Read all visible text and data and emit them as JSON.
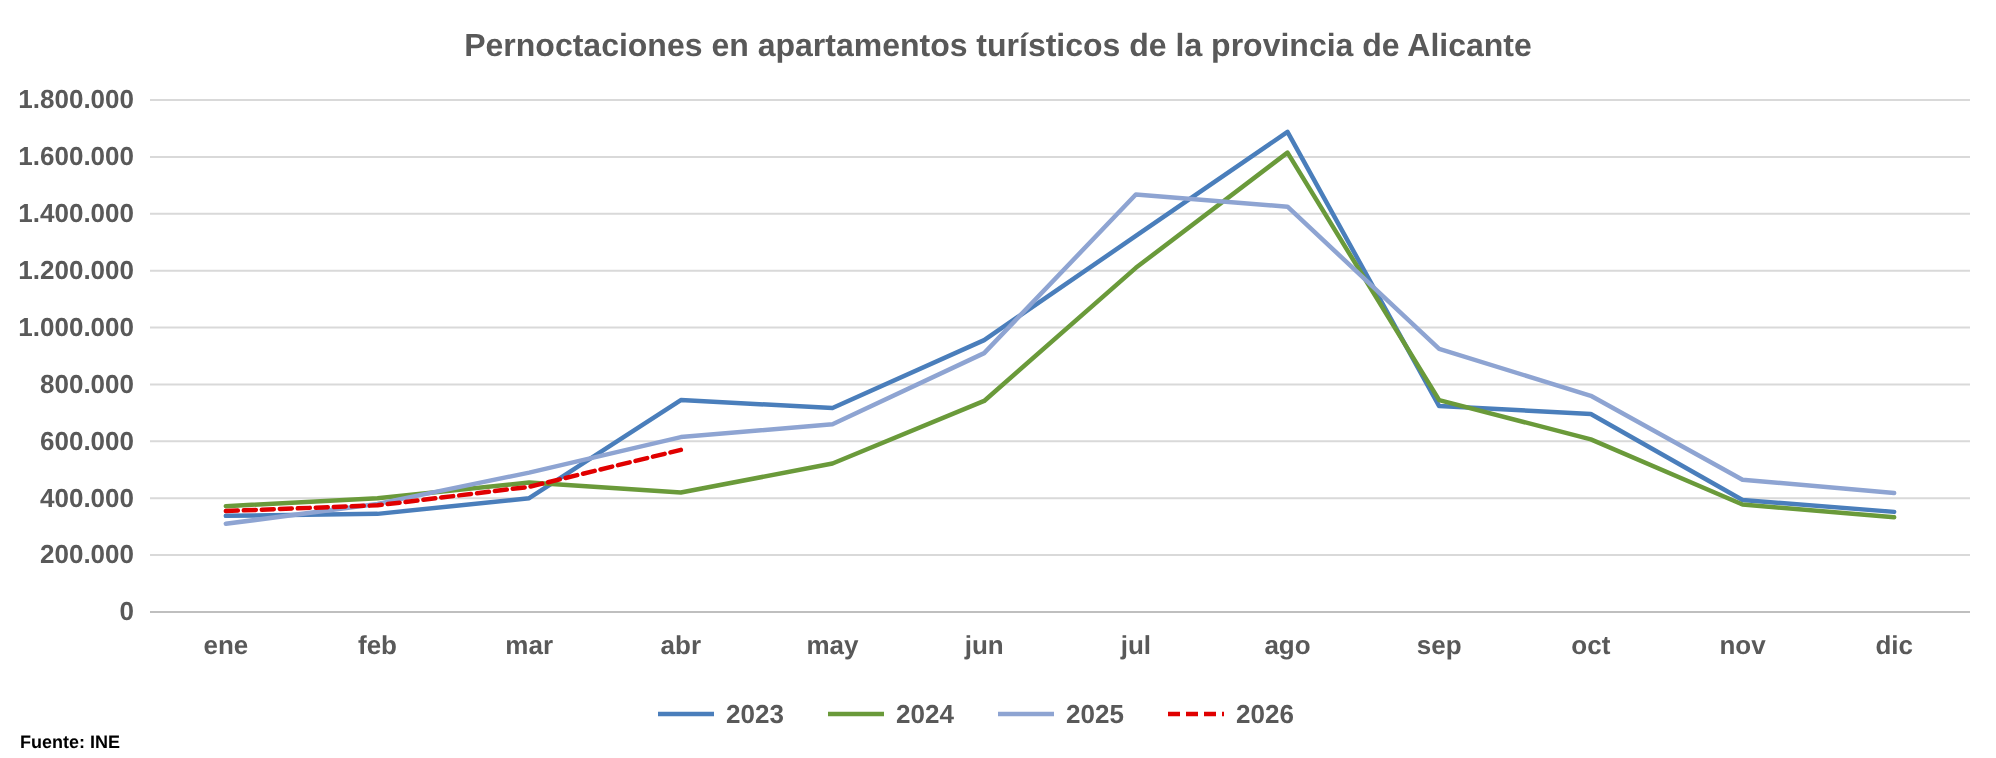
{
  "chart_data": {
    "type": "line",
    "title": "Pernoctaciones en apartamentos turísticos de la provincia de Alicante",
    "categories": [
      "ene",
      "feb",
      "mar",
      "abr",
      "may",
      "jun",
      "jul",
      "ago",
      "sep",
      "oct",
      "nov",
      "dic"
    ],
    "series": [
      {
        "name": "2023",
        "color": "#4a7ebb",
        "values": [
          338000,
          345000,
          400000,
          745000,
          717000,
          956000,
          1322000,
          1688000,
          724000,
          696000,
          394000,
          352000
        ]
      },
      {
        "name": "2024",
        "color": "#6a9a3a",
        "values": [
          372000,
          400000,
          455000,
          420000,
          522000,
          742000,
          1210000,
          1615000,
          745000,
          607000,
          378000,
          333000
        ]
      },
      {
        "name": "2025",
        "color": "#8ea4d2",
        "values": [
          310000,
          380000,
          490000,
          615000,
          660000,
          910000,
          1468000,
          1425000,
          925000,
          760000,
          465000,
          418000
        ]
      },
      {
        "name": "2026",
        "color": "#e00000",
        "line_style": "dashed",
        "values": [
          355000,
          375000,
          440000,
          570000,
          null,
          null,
          null,
          null,
          null,
          null,
          null,
          null
        ]
      }
    ],
    "ylim": [
      0,
      1800000
    ],
    "yticks": [
      0,
      {
        "value": 200000,
        "label": "200.000"
      },
      {
        "value": 400000,
        "label": "400.000"
      },
      {
        "value": 600000,
        "label": "600.000"
      },
      {
        "value": 800000,
        "label": "800.000"
      },
      {
        "value": 1000000,
        "label": "1.000.000"
      },
      {
        "value": 1200000,
        "label": "1.200.000"
      },
      {
        "value": 1400000,
        "label": "1.400.000"
      },
      {
        "value": 1600000,
        "label": "1.600.000"
      },
      {
        "value": 1800000,
        "label": "1.800.000"
      }
    ],
    "grid": "y",
    "legend": "bottom",
    "marker": "none",
    "line_style": "solid",
    "annotations": [
      "Fuente: INE"
    ]
  }
}
